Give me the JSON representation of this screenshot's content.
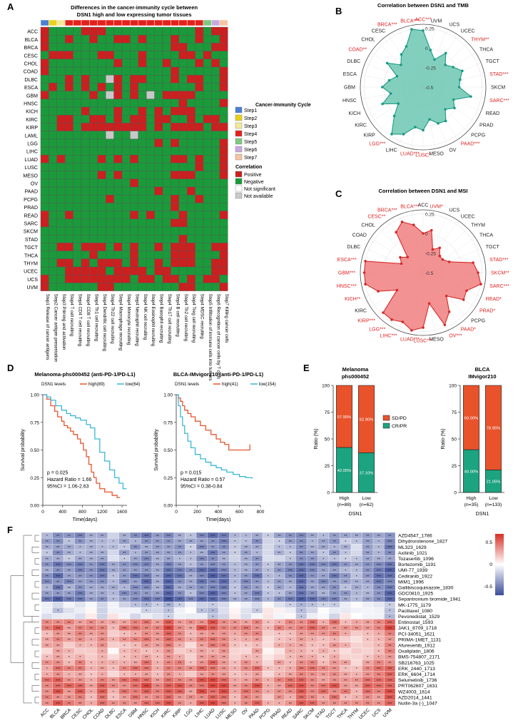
{
  "figure": {
    "panel_labels": [
      "A",
      "B",
      "C",
      "D",
      "E",
      "F"
    ]
  },
  "colors": {
    "step1": "#4a7fd4",
    "step2": "#e8d21a",
    "step3": "#f4e89a",
    "step4": "#e3211c",
    "step5": "#7fc97f",
    "step6": "#c9a8e0",
    "step7": "#f6c4a2",
    "positive": "#cc1f1f",
    "negative": "#1a9a3a",
    "not_significant": "#ffffff",
    "not_available": "#c8c8c8",
    "tmb_fill": "#6dc7b2",
    "tmb_line": "#1a9a84",
    "msi_fill": "#f07f7f",
    "msi_line": "#d42a2a",
    "km_high": "#e8542c",
    "km_low": "#3bb6d8",
    "sdpd": "#e8532b",
    "crpr": "#1ca37f",
    "heat_pos": "#d73027",
    "heat_neg": "#3b4c9a",
    "sig_label": "#e02020"
  },
  "chart_data": [
    {
      "id": "A",
      "type": "heatmap",
      "title": "Differences in the cancer-immunity cycle between DSN1 high and low expressing tumor tissues",
      "rows": [
        "ACC",
        "BLCA",
        "BRCA",
        "CESC",
        "CHOL",
        "COAD",
        "DLBC",
        "ESCA",
        "GBM",
        "HNSC",
        "KICH",
        "KIRC",
        "KIRP",
        "LAML",
        "LGG",
        "LIHC",
        "LUAD",
        "LUSC",
        "MESO",
        "OV",
        "PAAD",
        "PCPG",
        "PRAD",
        "READ",
        "SARC",
        "SKCM",
        "STAD",
        "TGCT",
        "THCA",
        "THYM",
        "UCEC",
        "UCS",
        "UVM"
      ],
      "columns": [
        "Step1 Release of cancer antigens",
        "Step2 Cancer antigen presentation",
        "Step3 Priming and activation",
        "Step4 T cell recruiting",
        "Step4 CD4 T cell recruiting",
        "Step4 CD8 T cell recruiting",
        "Step4 Th1 cell recruiting",
        "Step4 Dendritic cell recruiting",
        "Step4 Th22 cell recruiting",
        "Step4 Macrophage recruiting",
        "Step4 Monocyte recruiting",
        "Step4 Neutrophil recruiting",
        "Step4 NK cell recruiting",
        "Step4 Eosinophil recruiting",
        "Step4 Basophil recruiting",
        "Step4 Th17 cell recruiting",
        "Step4 B cell recruiting",
        "Step4 Th2 cell recruiting",
        "Step4 Treg cell recruiting",
        "Step4 MDSC recruiting",
        "Step5 Infiltration of immune cells into tumors",
        "Step6 Recognition of cancer cells by T cells",
        "Step7 Killing cancer cells"
      ],
      "column_steps": [
        1,
        2,
        3,
        4,
        4,
        4,
        4,
        4,
        4,
        4,
        4,
        4,
        4,
        4,
        4,
        4,
        4,
        4,
        4,
        4,
        5,
        6,
        7
      ],
      "cells": [
        "PNNNNPPPNNNNNNNNNNNPNPP",
        "PNNPNNPNNPPNPNNNPNNPNNP",
        "PNNNNNNNNNNNNNNNPPNNNPP",
        "NPPPNNNPPNNNPNNNNPPNPNN",
        "PNNNNNNNNPNNPNNPNNNPNPN",
        "PNNNNNNNNNNNNNNNPNNNNNP",
        "NNNPNPNNAPNPPNNNPNPPNNP",
        "NPNPNPNPNPNPNNNNNNNPNNP",
        "PNNNNNPNAPNPNANPPPPNNNN",
        "NNNNNNNNNNNNNNNNNPNNNNP",
        "NNNNNPNNNPNNPNPNPPPNNNN",
        "NNPPNNPPNPNPPNPPNNPNPPN",
        "NNPPNPPPPPPPPNPNPPPPNPP",
        "NNNNNNNNANNANNNNNNNNNNN",
        "NNNNNNNNNNNNNNPNPNNNNNP",
        "NNNNNNNNNNNNNNNNNNNNNNP",
        "PNPNNNNPNPNPNNNNPPNPNNP",
        "NNNNNNNNNNNNNNNNNNNPNNP",
        "NNNNNNNPNPNNNNNNPPPNNNP",
        "NNNNNNNNNNNPNNNNNNNNNNN",
        "NNNNNNNNNNNNNNPNNNPNNNN",
        "NNNNNNNNPNNNNNNNPNNPNNN",
        "NNNNNNNNNNNNNNNNPNNNNNN",
        "PNNPNNNNNNNPNPNNNPNNNNP",
        "PNNNNNNNNNNNNNNNPPNNNNN",
        "NNNNNNNNNNNNNNNNNNNNNNN",
        "NNNNNNNNNNNNNNNNNPNNNNN",
        "NNPPNPPPNPNPNNPNPPPNNPP",
        "NNNNNNPNNNNPNNNNPPPNNNP",
        "NNPPNPNPPPNPNNPNPPPNNPP",
        "NNNPPPPPNPPPPNPPNNNNNPP",
        "PNNPPPPPPPPNPPNPPNPNPPN",
        "PNNNNNNPPNNNNNNNNPPNNNP"
      ],
      "cell_codes": {
        "P": "Positive",
        "N": "Negative",
        "S": "Not significant",
        "A": "Not available"
      },
      "legend_title_steps": "Cancer-Immunity Cycle",
      "legend_steps": [
        "Step1",
        "Step2",
        "Step3",
        "Step4",
        "Step5",
        "Step6",
        "Step7"
      ],
      "legend_title_corr": "Correlation",
      "legend_corr": [
        "Positive",
        "Negative",
        "Not significant",
        "Not available"
      ]
    },
    {
      "id": "B",
      "type": "radar",
      "title": "Correlation between DSN1 and TMB",
      "rlim": [
        -0.5,
        0.3
      ],
      "rticks": [
        -0.5,
        -0.25,
        0,
        0.25
      ],
      "rtick_labels": [
        "-0.5",
        "-0.25",
        "0",
        "0.25"
      ],
      "categories": [
        "ACC***",
        "UVM",
        "UCS",
        "UCEC",
        "THYM**",
        "THCA",
        "TGCT",
        "STAD***",
        "SKCM",
        "SARC***",
        "READ",
        "PRAD",
        "PCPG",
        "PAAD***",
        "OV",
        "MESO",
        "LUSC*",
        "LUAD***",
        "LIHC",
        "LGG***",
        "KIRP",
        "KIRC",
        "KICH",
        "HNSC",
        "GBM",
        "ESCA",
        "DLBC",
        "COAD**",
        "CHOL",
        "CESC",
        "BRCA***",
        "BLCA***"
      ],
      "significant": [
        true,
        false,
        false,
        false,
        true,
        false,
        false,
        true,
        false,
        true,
        false,
        false,
        false,
        true,
        false,
        false,
        true,
        true,
        false,
        true,
        false,
        false,
        false,
        false,
        false,
        false,
        false,
        true,
        false,
        false,
        true,
        true
      ],
      "values": [
        0.22,
        -0.02,
        -0.12,
        0.02,
        -0.1,
        -0.04,
        0.04,
        -0.02,
        -0.04,
        0.12,
        -0.08,
        -0.02,
        -0.1,
        0.02,
        0.0,
        -0.08,
        0.05,
        0.02,
        0.15,
        0.22,
        0.02,
        -0.12,
        0.06,
        -0.08,
        0.02,
        -0.06,
        -0.14,
        0.05,
        -0.1,
        0.0,
        0.06,
        0.25
      ]
    },
    {
      "id": "C",
      "type": "radar",
      "title": "Correlation between DSN1 and MSI",
      "rlim": [
        -0.5,
        0.3
      ],
      "rticks": [
        -0.5,
        -0.25,
        0,
        0.25
      ],
      "rtick_labels": [
        "-0.5",
        "-0.25",
        "0",
        "0.25"
      ],
      "categories": [
        "ACC",
        "UVM*",
        "UCS",
        "UCEC",
        "THYM",
        "THCA",
        "TGCT",
        "STAD***",
        "SKCM**",
        "SARC***",
        "READ*",
        "PRAD*",
        "PCPG",
        "PAAD*",
        "OV***",
        "MESO",
        "LUSC***",
        "LUAD***",
        "LIHC***",
        "LGG***",
        "KIRP***",
        "KIRC",
        "KICH**",
        "HNSC***",
        "GBM***",
        "ESCA***",
        "DLBC",
        "COAD",
        "CHOL",
        "CESC**",
        "BRCA***",
        "BLCA***"
      ],
      "significant": [
        false,
        true,
        false,
        false,
        false,
        false,
        false,
        true,
        true,
        true,
        true,
        true,
        false,
        true,
        true,
        false,
        true,
        true,
        true,
        true,
        true,
        false,
        true,
        true,
        true,
        true,
        false,
        false,
        false,
        true,
        true,
        true
      ],
      "values": [
        0.0,
        0.05,
        -0.18,
        -0.12,
        -0.2,
        -0.2,
        -0.14,
        0.15,
        0.2,
        0.25,
        0.1,
        0.12,
        -0.08,
        0.1,
        0.22,
        -0.1,
        0.2,
        0.25,
        0.18,
        0.22,
        0.22,
        -0.1,
        0.12,
        0.25,
        0.25,
        0.25,
        -0.2,
        -0.15,
        -0.22,
        0.12,
        0.2,
        0.12
      ]
    },
    {
      "id": "D1",
      "type": "line",
      "title": "Melanoma-phs000452 (anti-PD-1/PD-L1)",
      "legend_title": "DSN1 levels",
      "xlabel": "Time(days)",
      "ylabel": "Survival probability",
      "xlim": [
        0,
        1700
      ],
      "ylim": [
        0,
        1.0
      ],
      "xticks": [
        0,
        400,
        800,
        1200,
        1600
      ],
      "yticks": [
        0,
        0.25,
        0.5,
        0.75,
        1.0
      ],
      "ytick_labels": [
        "0.00",
        "0.25",
        "0.50",
        "0.75",
        "1.00"
      ],
      "annotations": [
        "p = 0.025",
        "Hazard Ratio = 1.66",
        "95%CI = 1.06-2.63"
      ],
      "series": [
        {
          "name": "high(89)",
          "x": [
            0,
            80,
            160,
            240,
            300,
            380,
            430,
            500,
            560,
            620,
            700,
            760,
            820,
            880,
            930,
            980,
            1030,
            1080,
            1150,
            1250,
            1400,
            1500,
            1560
          ],
          "y": [
            1.0,
            0.96,
            0.9,
            0.85,
            0.8,
            0.76,
            0.72,
            0.7,
            0.67,
            0.64,
            0.6,
            0.56,
            0.5,
            0.44,
            0.37,
            0.3,
            0.25,
            0.2,
            0.15,
            0.12,
            0.09,
            0.07,
            0.07
          ]
        },
        {
          "name": "low(64)",
          "x": [
            0,
            80,
            160,
            260,
            380,
            480,
            560,
            660,
            760,
            880,
            960,
            1050,
            1150,
            1250,
            1350,
            1450,
            1540,
            1620,
            1690
          ],
          "y": [
            1.0,
            0.98,
            0.95,
            0.9,
            0.86,
            0.83,
            0.81,
            0.79,
            0.77,
            0.73,
            0.7,
            0.6,
            0.48,
            0.4,
            0.32,
            0.25,
            0.2,
            0.15,
            0.15
          ]
        }
      ]
    },
    {
      "id": "D2",
      "type": "line",
      "title": "BLCA-IMvigor210 (anti-PD-1/PD-L1)",
      "legend_title": "DSN1 levels",
      "xlabel": "Time(days)",
      "ylabel": "Survival probability",
      "xlim": [
        0,
        800
      ],
      "ylim": [
        0,
        1.0
      ],
      "xticks": [
        0,
        200,
        400,
        600,
        800
      ],
      "yticks": [
        0,
        0.25,
        0.5,
        0.75,
        1.0
      ],
      "ytick_labels": [
        "0.00",
        "0.25",
        "0.50",
        "0.75",
        "1.00"
      ],
      "annotations": [
        "p = 0.015",
        "Hazard Ratio = 0.57",
        "95%CI = 0.38-0.84"
      ],
      "series": [
        {
          "name": "high(41)",
          "x": [
            0,
            20,
            40,
            60,
            80,
            110,
            140,
            180,
            230,
            280,
            330,
            380,
            420,
            460,
            500,
            540,
            600,
            650,
            700
          ],
          "y": [
            1.0,
            0.97,
            0.94,
            0.9,
            0.86,
            0.83,
            0.8,
            0.76,
            0.72,
            0.68,
            0.64,
            0.6,
            0.57,
            0.55,
            0.5,
            0.5,
            0.5,
            0.5,
            0.55
          ]
        },
        {
          "name": "low(154)",
          "x": [
            0,
            20,
            40,
            60,
            80,
            110,
            140,
            180,
            230,
            280,
            330,
            380,
            430,
            480,
            540,
            600,
            660,
            720
          ],
          "y": [
            1.0,
            0.9,
            0.8,
            0.72,
            0.65,
            0.58,
            0.52,
            0.46,
            0.42,
            0.39,
            0.36,
            0.34,
            0.32,
            0.3,
            0.28,
            0.26,
            0.25,
            0.24
          ]
        }
      ]
    },
    {
      "id": "E1",
      "type": "bar",
      "title": "Melanoma",
      "subtitle": "phs000452",
      "ylabel": "Ratio (%)",
      "xlabel": "DSN1",
      "categories": [
        "High (n=88)",
        "Low (n=62)"
      ],
      "ylim": [
        0,
        100
      ],
      "yticks": [
        0,
        25,
        50,
        75,
        100
      ],
      "series": [
        {
          "name": "CR/PR",
          "values": [
            42.05,
            37.1
          ],
          "labels": [
            "42.05%",
            "37.10%"
          ]
        },
        {
          "name": "SD/PD",
          "values": [
            57.95,
            62.9
          ],
          "labels": [
            "57.95%",
            "62.90%"
          ]
        }
      ],
      "legend": [
        "SD/PD",
        "CR/PR"
      ]
    },
    {
      "id": "E2",
      "type": "bar",
      "title": "BLCA",
      "subtitle": "IMvigor210",
      "ylabel": "Ratio (%)",
      "xlabel": "DSN1",
      "categories": [
        "High (n=35)",
        "Low (n=133)"
      ],
      "ylim": [
        0,
        100
      ],
      "yticks": [
        0,
        25,
        50,
        75,
        100
      ],
      "series": [
        {
          "name": "CR/PR",
          "values": [
            40.0,
            21.05
          ],
          "labels": [
            "40.00%",
            "21.05%"
          ]
        },
        {
          "name": "SD/PD",
          "values": [
            60.0,
            78.95
          ],
          "labels": [
            "60.00%",
            "78.95%"
          ]
        }
      ]
    },
    {
      "id": "F",
      "type": "heatmap",
      "columns": [
        "ACC",
        "BLCA",
        "BRCA",
        "CESC",
        "CHOL",
        "COAD",
        "DLBC",
        "ESCA",
        "GBM",
        "HNSC",
        "KICH",
        "KIRC",
        "KIRP",
        "LGG",
        "LIHC",
        "LUAD",
        "LUSC",
        "MESO",
        "OV",
        "PAAD",
        "PCPG",
        "PRAD",
        "READ",
        "SARC",
        "SKCM",
        "STAD",
        "TGCT",
        "THCA",
        "THYM",
        "UCEC",
        "UCS",
        "UVM"
      ],
      "rows": [
        "AZD4547_1786",
        "Dihydrorotenone_1827",
        "ML323_1629",
        "Axitinib_1021",
        "Tozasertib_1096",
        "Bortezomib_1191",
        "UMI-77_1939",
        "Cediranib_1922",
        "MIM1_1996",
        "Gallibiscoquinazole_1830",
        "GDC0810_1925",
        "Sepantronium bromide_1941",
        "MK-1775_1179",
        "Paclitaxel_1080",
        "Pevonedistat_1529",
        "Entinostat_1593",
        "JAK1_8709_1718",
        "PCI-34051_1621",
        "PRIMA-1MET_1131",
        "Afuresertib_1912",
        "Oxaliplatin_1806",
        "BMS-754807_2171",
        "SB216763_1025",
        "ERK_2440_1713",
        "ERK_6604_1714",
        "Selumetinib_1736",
        "PRT062607_1631",
        "WZ4003_1614",
        "AZD2014_1441",
        "Nutlin-3a (-)_1047"
      ],
      "row_means": [
        -0.35,
        -0.32,
        -0.3,
        -0.3,
        -0.28,
        -0.38,
        -0.4,
        -0.42,
        -0.4,
        -0.36,
        -0.38,
        -0.45,
        -0.12,
        -0.08,
        -0.05,
        0.35,
        0.4,
        0.3,
        0.28,
        0.25,
        0.2,
        0.22,
        0.3,
        0.35,
        0.3,
        0.4,
        0.45,
        0.42,
        0.35,
        0.4
      ],
      "column_offsets": [
        0.0,
        0.1,
        0.0,
        0.05,
        -0.05,
        0.05,
        -0.1,
        0.0,
        0.05,
        0.1,
        0.0,
        0.15,
        0.05,
        -0.05,
        0.1,
        0.15,
        0.1,
        -0.05,
        0.0,
        0.05,
        -0.15,
        -0.05,
        0.0,
        0.1,
        0.05,
        0.0,
        0.05,
        -0.05,
        -0.1,
        0.0,
        0.05,
        0.15
      ],
      "legend_ticks": [
        "0.5",
        "0",
        "-0.5"
      ],
      "clim": [
        -0.7,
        0.7
      ]
    }
  ]
}
